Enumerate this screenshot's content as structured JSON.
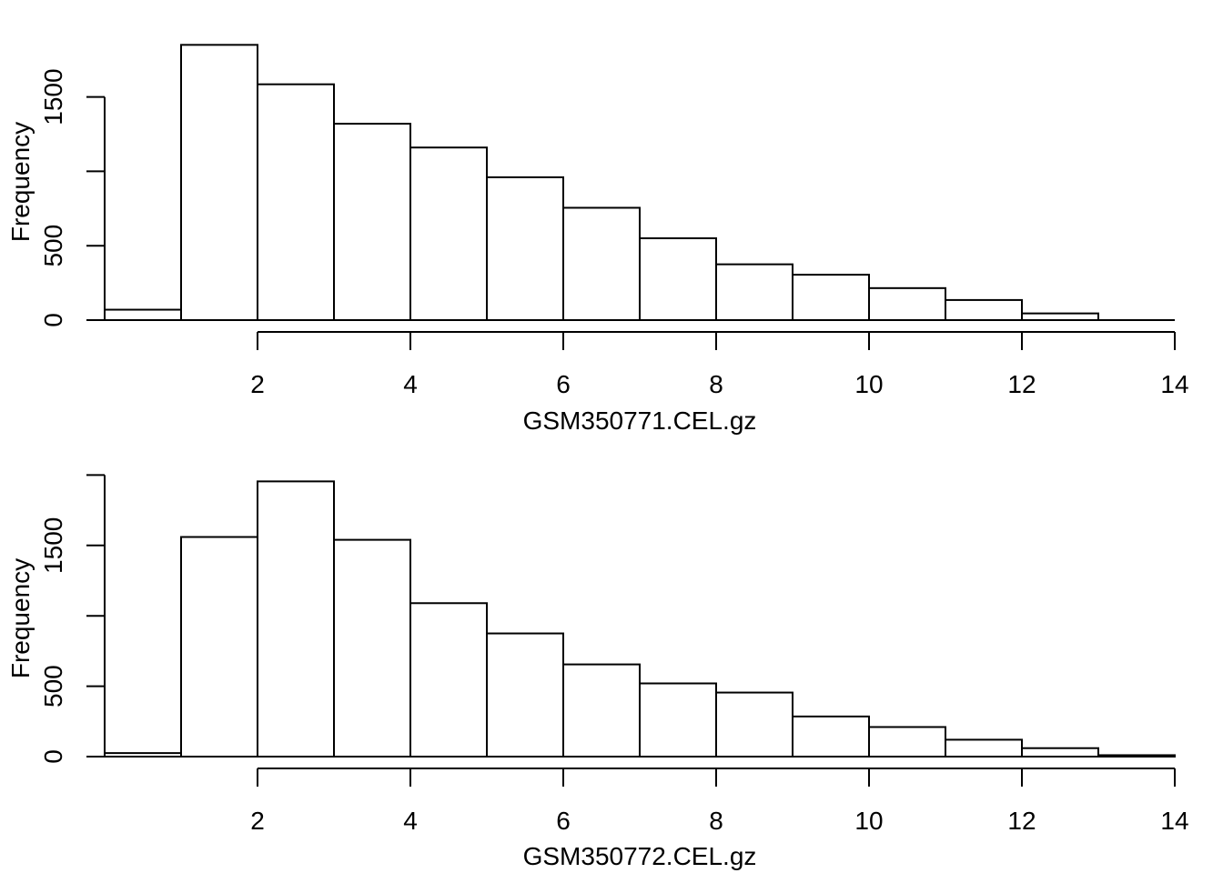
{
  "chart_data": [
    {
      "type": "bar",
      "histogram": true,
      "title": "",
      "xlabel": "GSM350771.CEL.gz",
      "ylabel": "Frequency",
      "bin_edges": [
        0,
        1,
        2,
        3,
        4,
        5,
        6,
        7,
        8,
        9,
        10,
        11,
        12,
        13,
        14
      ],
      "values": [
        70,
        1850,
        1585,
        1320,
        1160,
        960,
        755,
        550,
        375,
        305,
        215,
        135,
        45,
        0
      ],
      "xlim": [
        0,
        14
      ],
      "ylim": [
        0,
        1850
      ],
      "xticks": [
        2,
        4,
        6,
        8,
        10,
        12,
        14
      ],
      "xtick_labels": [
        "2",
        "4",
        "6",
        "8",
        "10",
        "12",
        "14"
      ],
      "yticks": [
        0,
        500,
        1000,
        1500
      ],
      "ytick_labels": [
        "0",
        "500",
        "",
        "1500"
      ],
      "grid": false
    },
    {
      "type": "bar",
      "histogram": true,
      "title": "",
      "xlabel": "GSM350772.CEL.gz",
      "ylabel": "Frequency",
      "bin_edges": [
        0,
        1,
        2,
        3,
        4,
        5,
        6,
        7,
        8,
        9,
        10,
        11,
        12,
        13,
        14
      ],
      "values": [
        25,
        1560,
        1955,
        1540,
        1090,
        875,
        655,
        520,
        455,
        285,
        210,
        120,
        60,
        10
      ],
      "xlim": [
        0,
        14
      ],
      "ylim": [
        0,
        2000
      ],
      "xticks": [
        2,
        4,
        6,
        8,
        10,
        12,
        14
      ],
      "xtick_labels": [
        "2",
        "4",
        "6",
        "8",
        "10",
        "12",
        "14"
      ],
      "yticks": [
        0,
        500,
        1000,
        1500,
        2000
      ],
      "ytick_labels": [
        "0",
        "500",
        "",
        "1500",
        ""
      ],
      "grid": false
    }
  ]
}
